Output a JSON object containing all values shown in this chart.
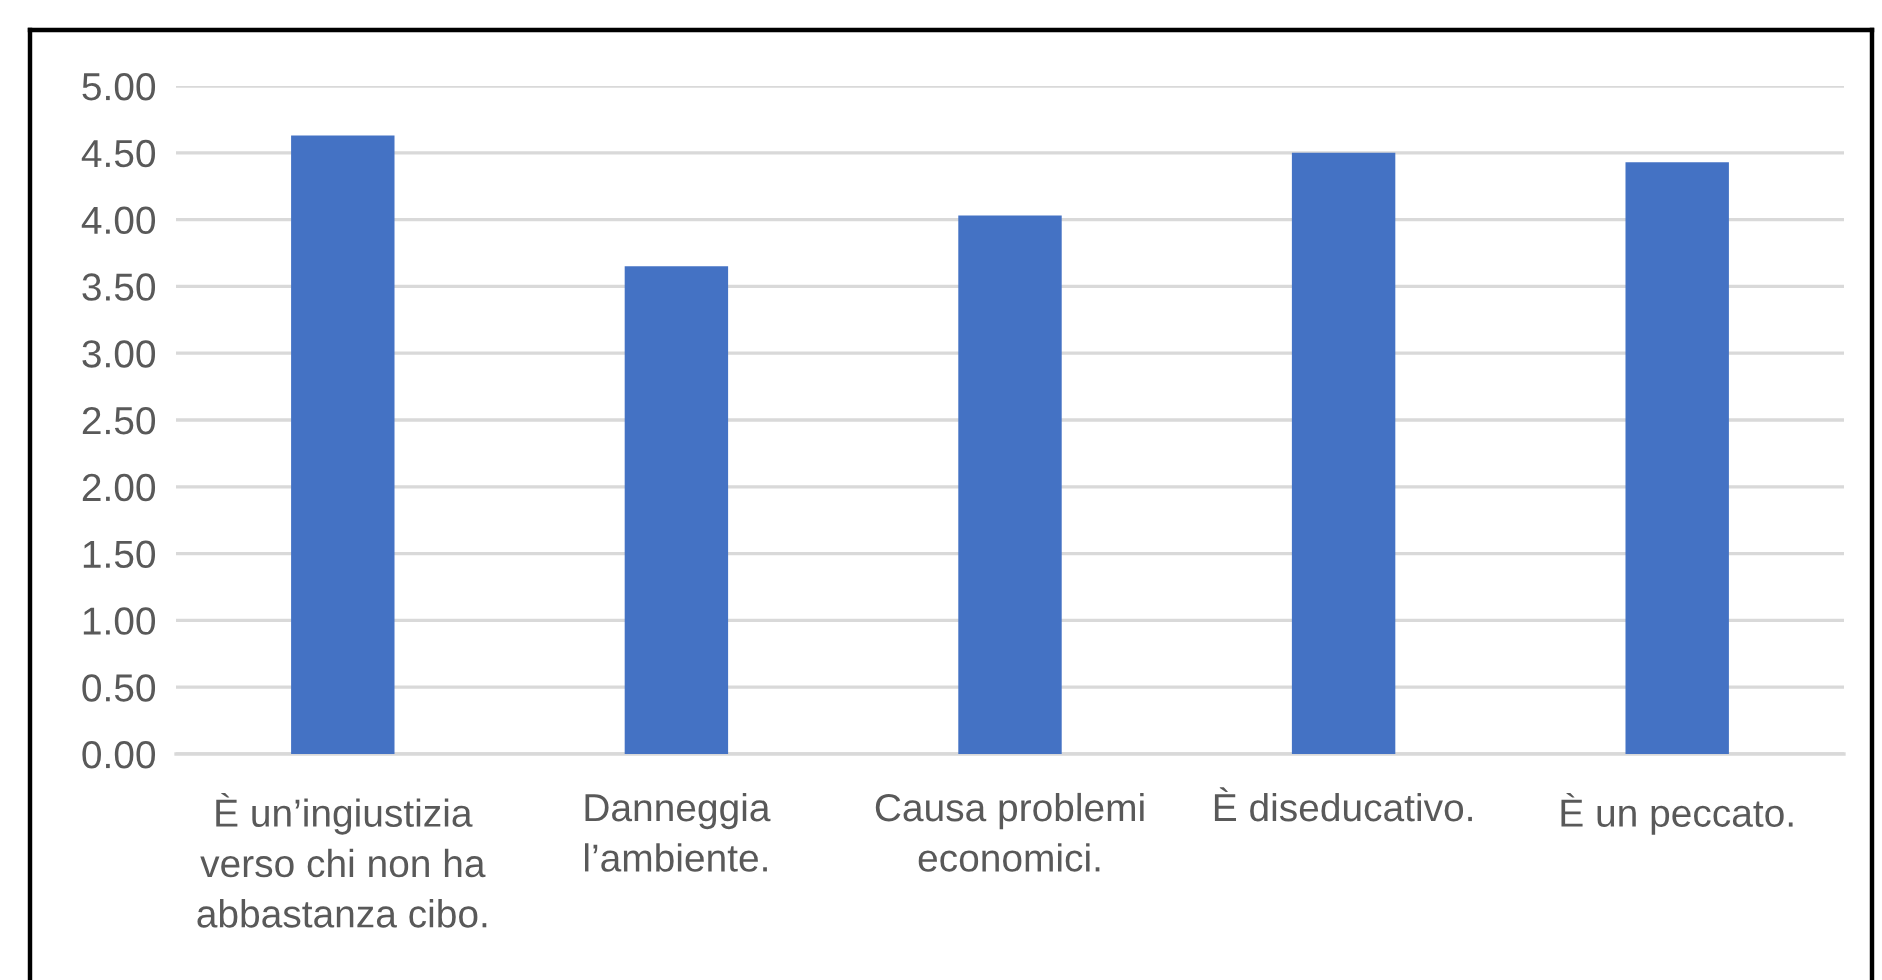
{
  "chart_data": {
    "type": "bar",
    "categories": [
      "È un’ingiustizia\nverso chi non ha\nabbastanza cibo.",
      "Danneggia\nl’ambiente.",
      "Causa problemi\neconomici.",
      "È diseducativo.",
      "È un peccato."
    ],
    "values": [
      4.63,
      3.65,
      4.03,
      4.5,
      4.43
    ],
    "color": "#4472c4",
    "ylim": [
      0,
      5
    ],
    "yticks": [
      {
        "value": 0,
        "label": "0.00"
      },
      {
        "value": 0.5,
        "label": "0.50"
      },
      {
        "value": 1,
        "label": "1.00"
      },
      {
        "value": 1.5,
        "label": "1.50"
      },
      {
        "value": 2,
        "label": "2.00"
      },
      {
        "value": 2.5,
        "label": "2.50"
      },
      {
        "value": 3,
        "label": "3.00"
      },
      {
        "value": 3.5,
        "label": "3.50"
      },
      {
        "value": 4,
        "label": "4.00"
      },
      {
        "value": 4.5,
        "label": "4.50"
      },
      {
        "value": 5,
        "label": "5.00"
      }
    ],
    "grid": "y",
    "legend": false
  }
}
